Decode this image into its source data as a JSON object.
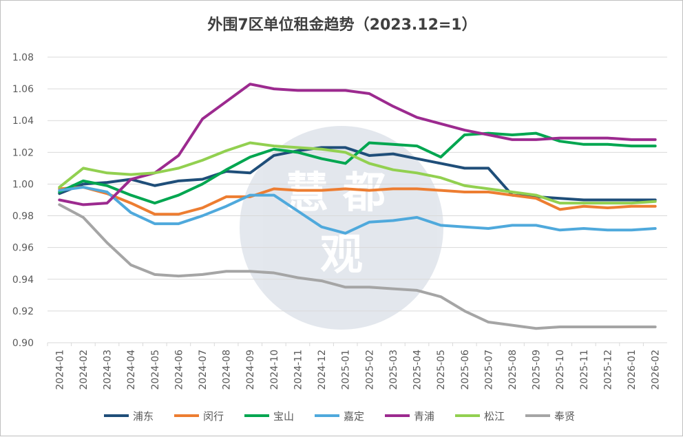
{
  "chart_data": {
    "type": "line",
    "title": "外围7区单位租金趋势（2023.12=1）",
    "xlabel": "",
    "ylabel": "",
    "ylim": [
      0.9,
      1.08
    ],
    "yticks": [
      "1.08",
      "1.06",
      "1.04",
      "1.02",
      "1.00",
      "0.98",
      "0.96",
      "0.94",
      "0.92",
      "0.90"
    ],
    "grid": true,
    "legend_position": "bottom",
    "watermark_text": "慧都观",
    "x": [
      "2024-01",
      "2024-02",
      "2024-03",
      "2024-04",
      "2024-05",
      "2024-06",
      "2024-07",
      "2024-08",
      "2024-09",
      "2024-10",
      "2024-11",
      "2024-12",
      "2025-01",
      "2025-02",
      "2025-03",
      "2025-04",
      "2025-05",
      "2025-06",
      "2025-07",
      "2025-08",
      "2025-09",
      "2025-10",
      "2025-11",
      "2025-12",
      "2026-01",
      "2026-02"
    ],
    "series": [
      {
        "name": "浦东",
        "color": "#1f4e79",
        "values": [
          0.994,
          1.0,
          1.001,
          1.003,
          0.999,
          1.002,
          1.003,
          1.008,
          1.007,
          1.018,
          1.021,
          1.023,
          1.023,
          1.018,
          1.019,
          1.016,
          1.013,
          1.01,
          1.01,
          0.993,
          0.992,
          0.991,
          0.99,
          0.99,
          0.99,
          0.99
        ]
      },
      {
        "name": "闵行",
        "color": "#ed7d31",
        "values": [
          0.997,
          0.998,
          0.994,
          0.988,
          0.981,
          0.981,
          0.985,
          0.992,
          0.992,
          0.997,
          0.996,
          0.996,
          0.997,
          0.996,
          0.997,
          0.997,
          0.996,
          0.995,
          0.995,
          0.993,
          0.991,
          0.984,
          0.986,
          0.985,
          0.986,
          0.986
        ]
      },
      {
        "name": "宝山",
        "color": "#00a650",
        "values": [
          0.995,
          1.002,
          0.999,
          0.993,
          0.988,
          0.993,
          1.0,
          1.009,
          1.017,
          1.022,
          1.02,
          1.016,
          1.013,
          1.026,
          1.025,
          1.024,
          1.017,
          1.031,
          1.032,
          1.031,
          1.032,
          1.027,
          1.025,
          1.025,
          1.024,
          1.024
        ]
      },
      {
        "name": "嘉定",
        "color": "#4fa9dc",
        "values": [
          0.996,
          0.998,
          0.995,
          0.982,
          0.975,
          0.975,
          0.98,
          0.986,
          0.993,
          0.993,
          0.983,
          0.973,
          0.969,
          0.976,
          0.977,
          0.979,
          0.974,
          0.973,
          0.972,
          0.974,
          0.974,
          0.971,
          0.972,
          0.971,
          0.971,
          0.972
        ]
      },
      {
        "name": "青浦",
        "color": "#9c2a8f",
        "values": [
          0.99,
          0.987,
          0.988,
          1.003,
          1.007,
          1.018,
          1.041,
          1.052,
          1.063,
          1.06,
          1.059,
          1.059,
          1.059,
          1.057,
          1.049,
          1.042,
          1.038,
          1.034,
          1.031,
          1.028,
          1.028,
          1.029,
          1.029,
          1.029,
          1.028,
          1.028
        ]
      },
      {
        "name": "松江",
        "color": "#92d050",
        "values": [
          0.998,
          1.01,
          1.007,
          1.006,
          1.007,
          1.01,
          1.015,
          1.021,
          1.026,
          1.024,
          1.023,
          1.022,
          1.02,
          1.013,
          1.009,
          1.007,
          1.004,
          0.999,
          0.997,
          0.995,
          0.993,
          0.988,
          0.988,
          0.988,
          0.988,
          0.989
        ]
      },
      {
        "name": "奉贤",
        "color": "#a5a5a5",
        "values": [
          0.987,
          0.979,
          0.963,
          0.949,
          0.943,
          0.942,
          0.943,
          0.945,
          0.945,
          0.944,
          0.941,
          0.939,
          0.935,
          0.935,
          0.934,
          0.933,
          0.929,
          0.92,
          0.913,
          0.911,
          0.909,
          0.91,
          0.91,
          0.91,
          0.91,
          0.91
        ]
      }
    ]
  }
}
